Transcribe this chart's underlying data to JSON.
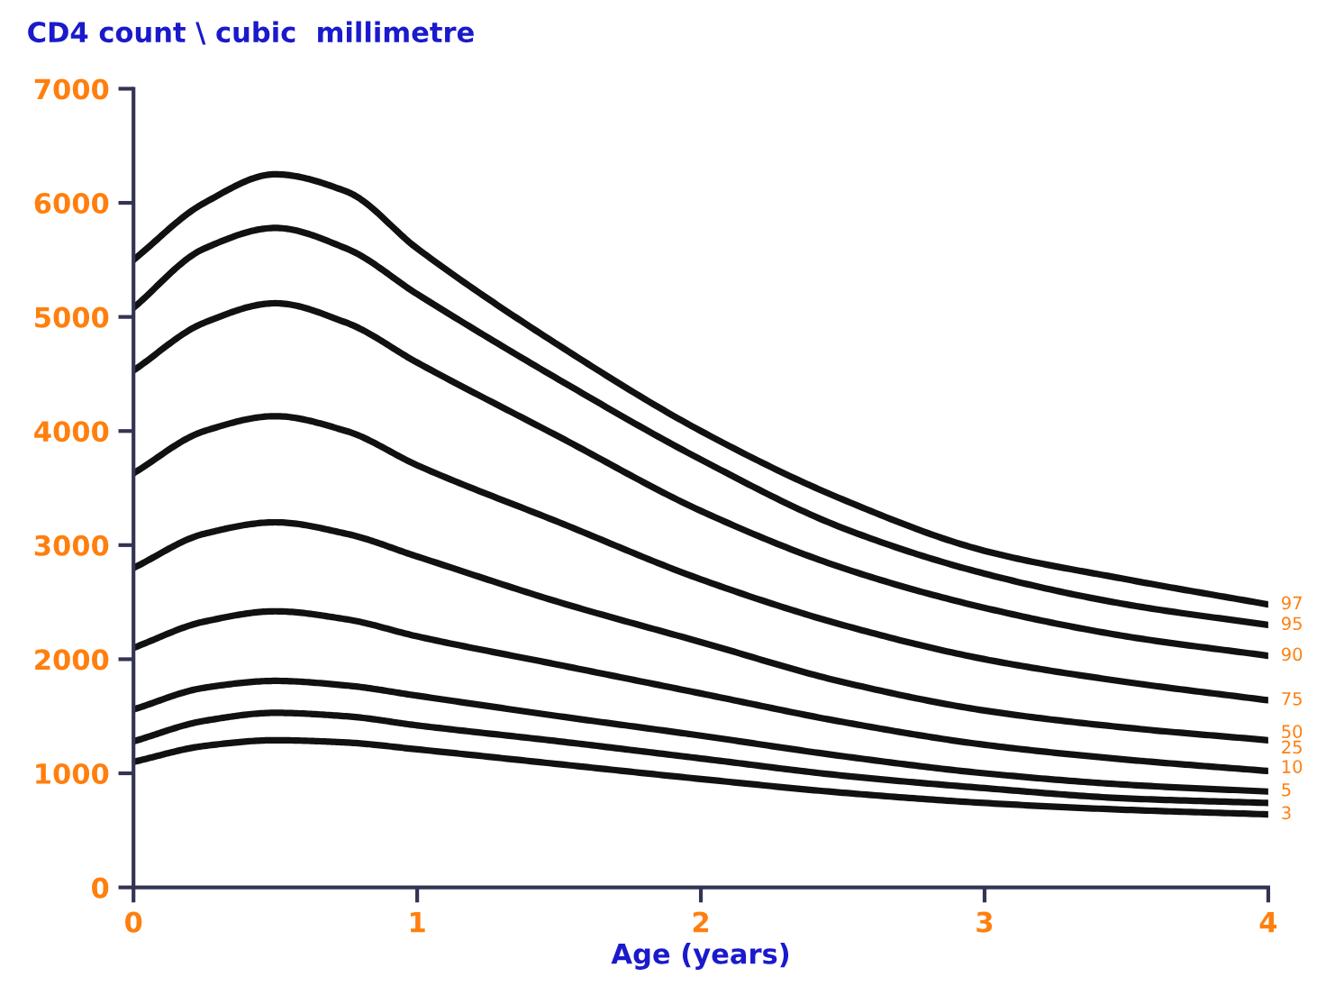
{
  "chart_data": {
    "type": "line",
    "ylabel": "CD4 count \\ cubic  millimetre",
    "xlabel": "Age (years)",
    "x": [
      0,
      0.25,
      0.5,
      0.75,
      1,
      1.5,
      2,
      2.5,
      3,
      3.5,
      4
    ],
    "xlim": [
      0,
      4
    ],
    "xticks": [
      0,
      1,
      2,
      3,
      4
    ],
    "ylim": [
      0,
      7000
    ],
    "yticks": [
      0,
      1000,
      2000,
      3000,
      4000,
      5000,
      6000,
      7000
    ],
    "grid": false,
    "legend": false,
    "marker": "none",
    "line_style": "solid",
    "series": [
      {
        "name": "97",
        "color": "#111111",
        "values": [
          5500,
          6000,
          6250,
          6100,
          5600,
          4750,
          4000,
          3400,
          2950,
          2700,
          2480
        ]
      },
      {
        "name": "95",
        "color": "#111111",
        "values": [
          5080,
          5600,
          5780,
          5600,
          5200,
          4450,
          3750,
          3150,
          2750,
          2480,
          2300
        ]
      },
      {
        "name": "90",
        "color": "#111111",
        "values": [
          4530,
          4950,
          5120,
          4950,
          4600,
          3950,
          3300,
          2800,
          2450,
          2200,
          2030
        ]
      },
      {
        "name": "75",
        "color": "#111111",
        "values": [
          3630,
          4000,
          4130,
          4000,
          3700,
          3200,
          2700,
          2300,
          2000,
          1800,
          1640
        ]
      },
      {
        "name": "50",
        "color": "#111111",
        "values": [
          2800,
          3100,
          3200,
          3100,
          2900,
          2500,
          2150,
          1800,
          1550,
          1400,
          1290
        ]
      },
      {
        "name": "25",
        "color": "#111111",
        "values": [
          2100,
          2330,
          2420,
          2350,
          2200,
          1950,
          1700,
          1450,
          1250,
          1120,
          1020
        ]
      },
      {
        "name": "10",
        "color": "#111111",
        "values": [
          1560,
          1750,
          1810,
          1770,
          1680,
          1500,
          1330,
          1150,
          1000,
          900,
          840
        ]
      },
      {
        "name": "5",
        "color": "#111111",
        "values": [
          1280,
          1460,
          1530,
          1500,
          1420,
          1280,
          1130,
          980,
          870,
          780,
          740
        ]
      },
      {
        "name": "3",
        "color": "#111111",
        "values": [
          1100,
          1240,
          1290,
          1270,
          1210,
          1080,
          950,
          830,
          740,
          680,
          640
        ]
      }
    ]
  }
}
